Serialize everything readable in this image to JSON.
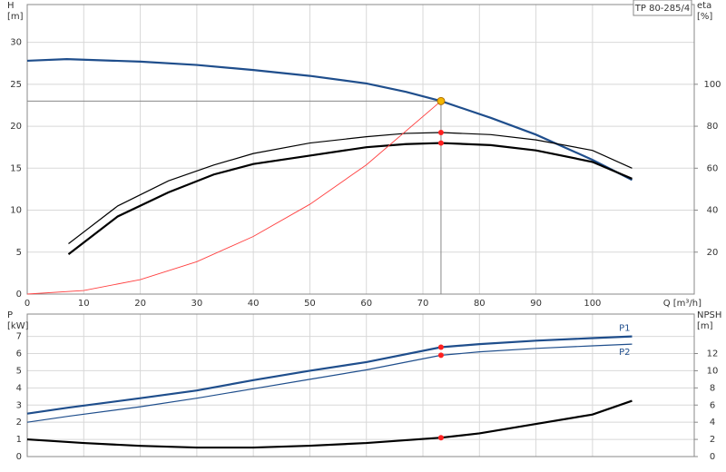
{
  "chart_data": [
    {
      "type": "line",
      "title": "TP 80-285/4",
      "x_label": "Q [m³/h]",
      "y_label": [
        "H",
        "[m]"
      ],
      "y2_label": [
        "eta",
        "[%]"
      ],
      "xlim": [
        0,
        118
      ],
      "xticks": [
        0,
        10,
        20,
        30,
        40,
        50,
        60,
        70,
        80,
        90,
        100
      ],
      "ylim": [
        0,
        34.5
      ],
      "yticks": [
        0,
        5,
        10,
        15,
        20,
        25,
        30
      ],
      "y2lim": [
        0,
        138
      ],
      "y2ticks": [
        20,
        40,
        60,
        80,
        100
      ],
      "grid": true,
      "series": [
        {
          "color": "#1f4e8c",
          "width": 2.2,
          "x": [
            0,
            7,
            20,
            30,
            40,
            50,
            60,
            67,
            73.2,
            82,
            90,
            100,
            107
          ],
          "values": [
            27.8,
            28.0,
            27.7,
            27.3,
            26.7,
            26.0,
            25.1,
            24.1,
            23.0,
            21.0,
            19.0,
            16.0,
            13.6
          ]
        },
        {
          "color": "#000000",
          "width": 1.2,
          "axis": "y2",
          "x": [
            7.3,
            16,
            25,
            33,
            40,
            50,
            60,
            67,
            73.2,
            82,
            90,
            100,
            107
          ],
          "values": [
            24,
            42,
            54,
            61.5,
            67,
            72,
            75,
            76.6,
            77,
            76,
            73.5,
            68.5,
            60
          ]
        },
        {
          "color": "#000000",
          "width": 2.2,
          "axis": "y2",
          "x": [
            7.3,
            16,
            25,
            33,
            40,
            50,
            60,
            67,
            73.2,
            82,
            90,
            100,
            107
          ],
          "values": [
            19,
            37,
            48.5,
            57,
            62,
            66,
            70,
            71.5,
            72,
            71,
            68.5,
            63,
            55
          ]
        },
        {
          "color": "#ff4040",
          "width": 0.9,
          "x": [
            0,
            10,
            20,
            30,
            40,
            50,
            60,
            73.2
          ],
          "values": [
            0,
            0.43,
            1.72,
            3.86,
            6.87,
            10.7,
            15.4,
            23.0
          ]
        }
      ],
      "crosshair": {
        "x": 73.2,
        "y": 23.0
      },
      "markers": [
        {
          "x": 73.2,
          "value": 23.0,
          "color": "#f5b800"
        },
        {
          "x": 73.2,
          "value": 77,
          "axis": "y2",
          "color": "#ff2020"
        },
        {
          "x": 73.2,
          "value": 72,
          "axis": "y2",
          "color": "#ff2020"
        }
      ]
    },
    {
      "type": "line",
      "y_label": [
        "P",
        "[kW]"
      ],
      "y2_label": [
        "NPSH",
        "[m]"
      ],
      "xlim": [
        0,
        118
      ],
      "xticks": [
        0,
        10,
        20,
        30,
        40,
        50,
        60,
        70,
        80,
        90,
        100
      ],
      "ylim": [
        0,
        8.3
      ],
      "yticks": [
        0,
        1,
        2,
        3,
        4,
        5,
        6,
        7
      ],
      "y2lim": [
        0,
        16.6
      ],
      "y2ticks": [
        0,
        2,
        4,
        6,
        8,
        10,
        12
      ],
      "grid": true,
      "series": [
        {
          "name": "P1",
          "color": "#1f4e8c",
          "width": 2.2,
          "x": [
            0,
            7.3,
            20,
            30,
            40,
            50,
            60,
            73.2,
            80,
            90,
            100,
            107
          ],
          "values": [
            2.5,
            2.85,
            3.4,
            3.85,
            4.45,
            5.0,
            5.5,
            6.37,
            6.55,
            6.75,
            6.9,
            7.0
          ]
        },
        {
          "name": "P2",
          "color": "#1f4e8c",
          "width": 1.2,
          "x": [
            0,
            7.3,
            20,
            30,
            40,
            50,
            60,
            73.2,
            80,
            90,
            100,
            107
          ],
          "values": [
            2.0,
            2.35,
            2.9,
            3.4,
            3.95,
            4.5,
            5.05,
            5.9,
            6.1,
            6.3,
            6.45,
            6.55
          ]
        },
        {
          "color": "#000000",
          "width": 2.2,
          "axis": "y2",
          "x": [
            0,
            10,
            20,
            30,
            40,
            50,
            60,
            73.2,
            80,
            90,
            100,
            107
          ],
          "values": [
            2.0,
            1.58,
            1.25,
            1.05,
            1.05,
            1.26,
            1.58,
            2.2,
            2.7,
            3.8,
            4.9,
            6.5
          ]
        }
      ],
      "markers": [
        {
          "x": 73.2,
          "value": 6.37,
          "color": "#ff2020"
        },
        {
          "x": 73.2,
          "value": 5.9,
          "color": "#ff2020"
        },
        {
          "x": 73.2,
          "value": 2.2,
          "axis": "y2",
          "color": "#ff2020"
        }
      ]
    }
  ]
}
